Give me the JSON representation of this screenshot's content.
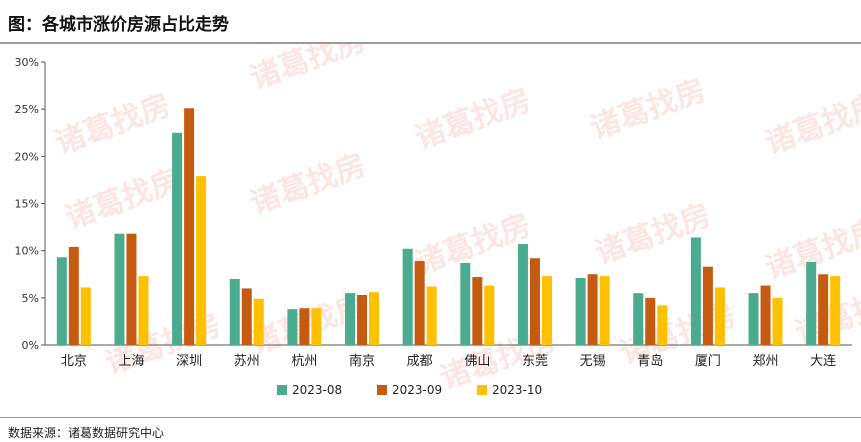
{
  "title": "图：各城市涨价房源占比走势",
  "source": "数据来源：诸葛数据研究中心",
  "watermark": "诸葛找房",
  "chart_data": {
    "type": "bar",
    "title": "图：各城市涨价房源占比走势",
    "xlabel": "",
    "ylabel": "",
    "ylim": [
      0,
      30
    ],
    "yticks": [
      "0%",
      "5%",
      "10%",
      "15%",
      "20%",
      "25%",
      "30%"
    ],
    "grid": false,
    "legend": "bottom",
    "categories": [
      "北京",
      "上海",
      "深圳",
      "苏州",
      "杭州",
      "南京",
      "成都",
      "佛山",
      "东莞",
      "无锡",
      "青岛",
      "厦门",
      "郑州",
      "大连"
    ],
    "series": [
      {
        "name": "2023-08",
        "color": "#4aab8f",
        "values": [
          9.3,
          11.8,
          22.5,
          7.0,
          3.8,
          5.5,
          10.2,
          8.7,
          10.7,
          7.1,
          5.5,
          11.4,
          5.5,
          8.8
        ]
      },
      {
        "name": "2023-09",
        "color": "#c55a11",
        "values": [
          10.4,
          11.8,
          25.1,
          6.0,
          3.9,
          5.3,
          8.9,
          7.2,
          9.2,
          7.5,
          5.0,
          8.3,
          6.3,
          7.5
        ]
      },
      {
        "name": "2023-10",
        "color": "#ffc000",
        "values": [
          6.1,
          7.3,
          17.9,
          4.9,
          3.9,
          5.6,
          6.2,
          6.3,
          7.3,
          7.3,
          4.2,
          6.1,
          5.0,
          7.3
        ]
      }
    ]
  }
}
